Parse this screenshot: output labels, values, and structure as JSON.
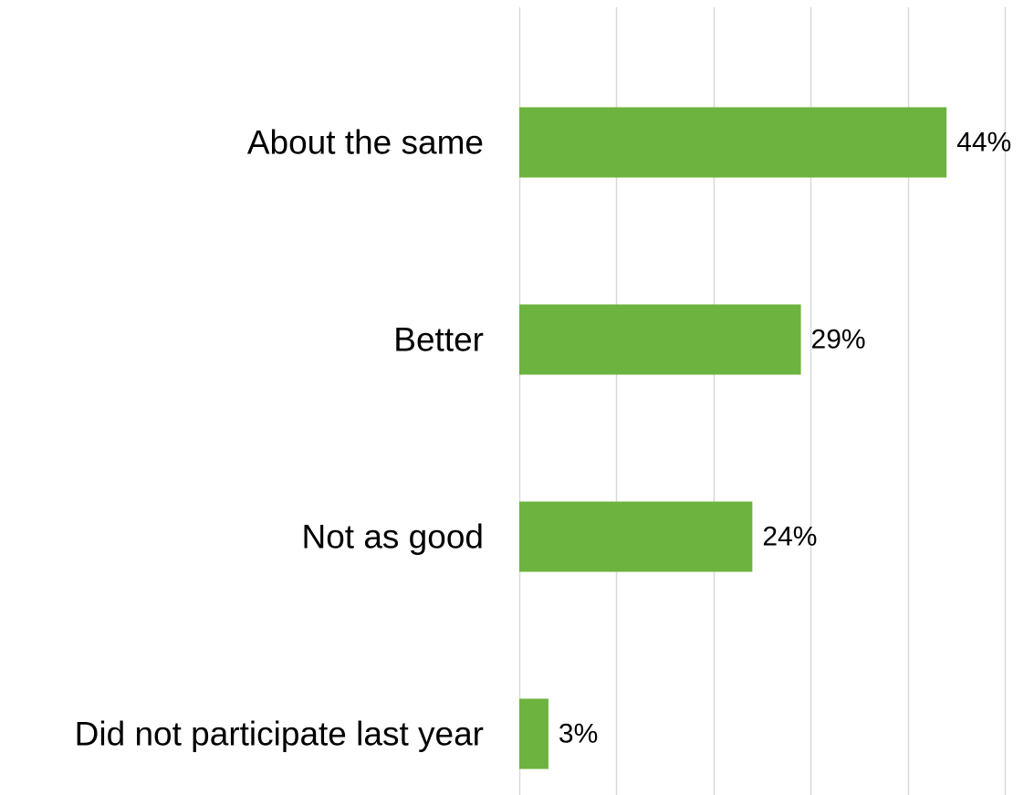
{
  "chart_data": {
    "type": "bar",
    "orientation": "horizontal",
    "categories": [
      "About the same",
      "Better",
      "Not as good",
      "Did not participate last year"
    ],
    "values": [
      44,
      29,
      24,
      3
    ],
    "value_labels": [
      "44%",
      "29%",
      "24%",
      "3%"
    ],
    "unit": "%",
    "xlim": [
      0,
      50
    ],
    "grid": true,
    "legend": "none",
    "bar_color": "#6DB33F",
    "grid_color": "#D9D9D9"
  }
}
